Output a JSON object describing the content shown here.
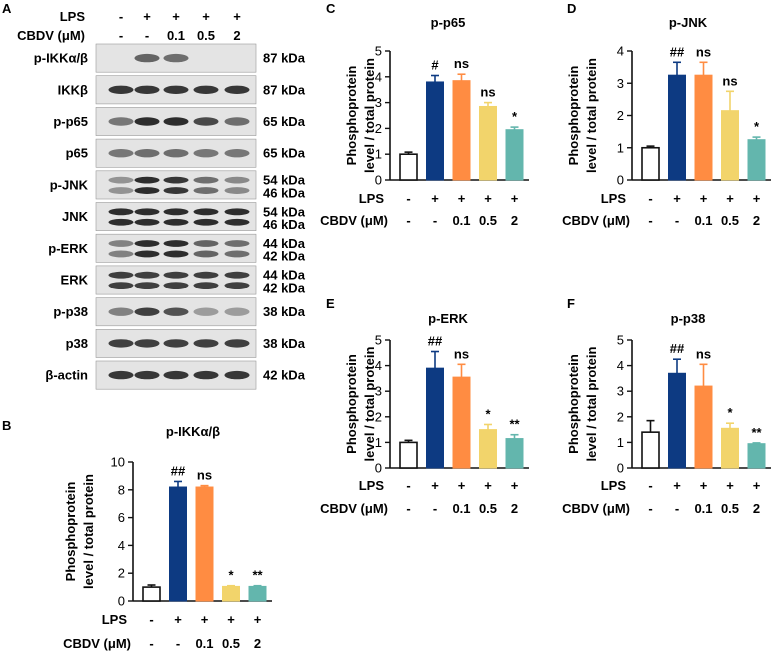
{
  "western_blot": {
    "panel_label": "A",
    "lps_label": "LPS",
    "lps_values": [
      "-",
      "+",
      "+",
      "+",
      "+"
    ],
    "cbdv_label": "CBDV (μM)",
    "cbdv_values": [
      "-",
      "-",
      "0.1",
      "0.5",
      "2"
    ],
    "rows": [
      {
        "name": "p-IKKα/β",
        "kda": [
          "87 kDa"
        ],
        "intensity": [
          0.0,
          0.65,
          0.6,
          0.0,
          0.0
        ],
        "bands": 1
      },
      {
        "name": "IKKβ",
        "kda": [
          "87 kDa"
        ],
        "intensity": [
          0.9,
          0.9,
          0.9,
          0.9,
          0.9
        ],
        "bands": 1
      },
      {
        "name": "p-p65",
        "kda": [
          "65 kDa"
        ],
        "intensity": [
          0.55,
          0.95,
          0.95,
          0.8,
          0.6
        ],
        "bands": 1
      },
      {
        "name": "p65",
        "kda": [
          "65 kDa"
        ],
        "intensity": [
          0.55,
          0.6,
          0.6,
          0.55,
          0.55
        ],
        "bands": 1
      },
      {
        "name": "p-JNK",
        "kda": [
          "54 kDa",
          "46 kDa"
        ],
        "intensity": [
          0.4,
          0.95,
          0.9,
          0.6,
          0.45
        ],
        "bands": 2
      },
      {
        "name": "JNK",
        "kda": [
          "54 kDa",
          "46 kDa"
        ],
        "intensity": [
          0.95,
          0.95,
          0.95,
          0.95,
          0.95
        ],
        "bands": 2
      },
      {
        "name": "p-ERK",
        "kda": [
          "44 kDa",
          "42 kDa"
        ],
        "intensity": [
          0.5,
          0.95,
          0.95,
          0.65,
          0.6
        ],
        "bands": 2
      },
      {
        "name": "ERK",
        "kda": [
          "44 kDa",
          "42 kDa"
        ],
        "intensity": [
          0.85,
          0.85,
          0.85,
          0.85,
          0.85
        ],
        "bands": 2
      },
      {
        "name": "p-p38",
        "kda": [
          "38 kDa"
        ],
        "intensity": [
          0.5,
          0.85,
          0.75,
          0.35,
          0.35
        ],
        "bands": 1
      },
      {
        "name": "p38",
        "kda": [
          "38 kDa"
        ],
        "intensity": [
          0.85,
          0.85,
          0.85,
          0.85,
          0.85
        ],
        "bands": 1
      },
      {
        "name": "β-actin",
        "kda": [
          "42 kDa"
        ],
        "intensity": [
          0.9,
          0.9,
          0.9,
          0.9,
          0.9
        ],
        "bands": 1
      }
    ]
  },
  "colors": {
    "control": "#ffffff",
    "lps": "#0d3a82",
    "cbdv_0_1": "#ff8c42",
    "cbdv_0_5": "#f2d46b",
    "cbdv_2": "#63b6ad",
    "axis": "#111111"
  },
  "chart_data": [
    {
      "panel_label": "B",
      "type": "bar",
      "title": "p-IKKα/β",
      "ylabel_line1": "Phosphoprotein",
      "ylabel_line2": "level / total protein",
      "ylim": [
        0,
        10
      ],
      "yticks": [
        0,
        2,
        4,
        6,
        8,
        10
      ],
      "values": [
        1.0,
        8.2,
        8.2,
        1.05,
        1.05
      ],
      "errors": [
        0.15,
        0.4,
        0.1,
        0.05,
        0.05
      ],
      "annotations": [
        "",
        "##",
        "ns",
        "*",
        "**"
      ],
      "lps": [
        "-",
        "+",
        "+",
        "+",
        "+"
      ],
      "cbdv": [
        "-",
        "-",
        "0.1",
        "0.5",
        "2"
      ],
      "lps_label": "LPS",
      "cbdv_label": "CBDV (μM)"
    },
    {
      "panel_label": "C",
      "type": "bar",
      "title": "p-p65",
      "ylabel_line1": "Phosphoprotein",
      "ylabel_line2": "level / total protein",
      "ylim": [
        0,
        5
      ],
      "yticks": [
        0,
        1,
        2,
        3,
        4,
        5
      ],
      "values": [
        1.0,
        3.8,
        3.85,
        2.85,
        1.95
      ],
      "errors": [
        0.08,
        0.25,
        0.25,
        0.15,
        0.1
      ],
      "annotations": [
        "",
        "#",
        "ns",
        "ns",
        "*"
      ],
      "lps": [
        "-",
        "+",
        "+",
        "+",
        "+"
      ],
      "cbdv": [
        "-",
        "-",
        "0.1",
        "0.5",
        "2"
      ],
      "lps_label": "LPS",
      "cbdv_label": "CBDV (μM)"
    },
    {
      "panel_label": "D",
      "type": "bar",
      "title": "p-JNK",
      "ylabel_line1": "Phosphoprotein",
      "ylabel_line2": "level / total protein",
      "ylim": [
        0,
        4
      ],
      "yticks": [
        0,
        1,
        2,
        3,
        4
      ],
      "values": [
        1.0,
        3.25,
        3.25,
        2.15,
        1.25
      ],
      "errors": [
        0.05,
        0.4,
        0.4,
        0.6,
        0.08
      ],
      "annotations": [
        "",
        "##",
        "ns",
        "ns",
        "*"
      ],
      "lps": [
        "-",
        "+",
        "+",
        "+",
        "+"
      ],
      "cbdv": [
        "-",
        "-",
        "0.1",
        "0.5",
        "2"
      ],
      "lps_label": "LPS",
      "cbdv_label": "CBDV (μM)"
    },
    {
      "panel_label": "E",
      "type": "bar",
      "title": "p-ERK",
      "ylabel_line1": "Phosphoprotein",
      "ylabel_line2": "level / total protein",
      "ylim": [
        0,
        5
      ],
      "yticks": [
        0,
        1,
        2,
        3,
        4,
        5
      ],
      "values": [
        1.0,
        3.9,
        3.55,
        1.5,
        1.15
      ],
      "errors": [
        0.08,
        0.65,
        0.5,
        0.2,
        0.15
      ],
      "annotations": [
        "",
        "##",
        "ns",
        "*",
        "**"
      ],
      "lps": [
        "-",
        "+",
        "+",
        "+",
        "+"
      ],
      "cbdv": [
        "-",
        "-",
        "0.1",
        "0.5",
        "2"
      ],
      "lps_label": "LPS",
      "cbdv_label": "CBDV (μM)"
    },
    {
      "panel_label": "F",
      "type": "bar",
      "title": "p-p38",
      "ylabel_line1": "Phosphoprotein",
      "ylabel_line2": "level / total protein",
      "ylim": [
        0,
        5
      ],
      "yticks": [
        0,
        1,
        2,
        3,
        4,
        5
      ],
      "values": [
        1.4,
        3.7,
        3.2,
        1.55,
        0.95
      ],
      "errors": [
        0.45,
        0.55,
        0.85,
        0.2,
        0.03
      ],
      "annotations": [
        "",
        "##",
        "ns",
        "*",
        "**"
      ],
      "lps": [
        "-",
        "+",
        "+",
        "+",
        "+"
      ],
      "cbdv": [
        "-",
        "-",
        "0.1",
        "0.5",
        "2"
      ],
      "lps_label": "LPS",
      "cbdv_label": "CBDV (μM)"
    }
  ]
}
